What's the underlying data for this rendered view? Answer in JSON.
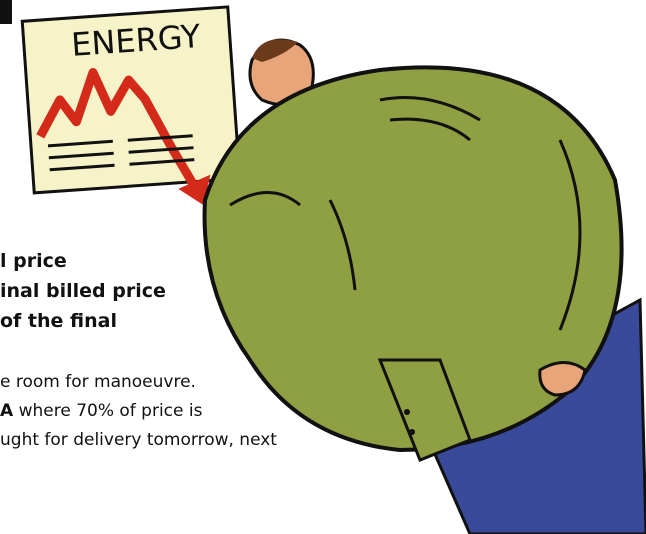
{
  "sign": {
    "label": "ENERGY"
  },
  "bold_lines": [
    "l price",
    "inal billed price",
    "of the final"
  ],
  "body_lines": [
    {
      "text": "e room for manoeuvre."
    },
    {
      "bold": "A",
      "text": "where 70% of price is"
    },
    {
      "text": "ught for delivery tomorrow, next"
    }
  ]
}
